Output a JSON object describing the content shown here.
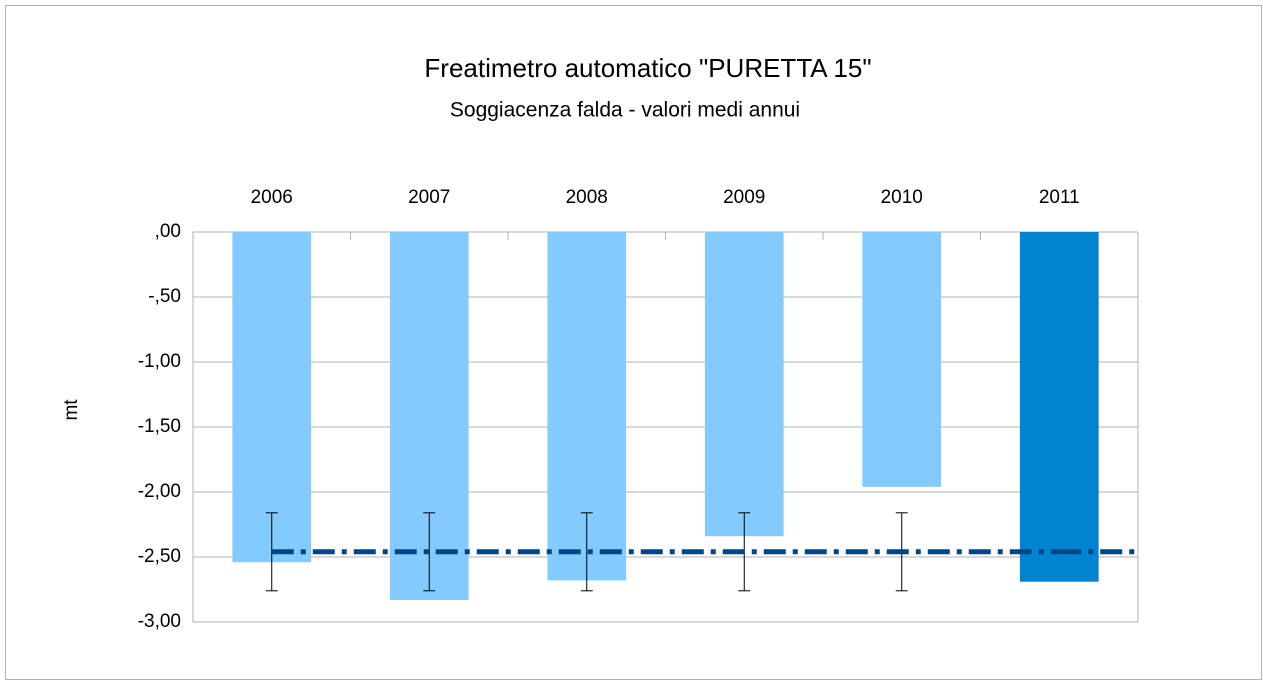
{
  "chart_data": {
    "type": "bar",
    "title": "Freatimetro automatico \"PURETTA 15\"",
    "subtitle": "Soggiacenza falda - valori medi annui",
    "y_label": "mt",
    "categories": [
      "2006",
      "2007",
      "2008",
      "2009",
      "2010",
      "2011"
    ],
    "values": [
      -2.54,
      -2.83,
      -2.68,
      -2.34,
      -1.96,
      -2.69
    ],
    "colors": [
      "#83caff",
      "#83caff",
      "#83caff",
      "#83caff",
      "#83caff",
      "#0084d1"
    ],
    "line_values": [
      -2.46,
      -2.46,
      -2.46,
      -2.46,
      -2.46,
      -2.46
    ],
    "line_errors": [
      0.3,
      0.3,
      0.3,
      0.3,
      0.3,
      null
    ],
    "line_color": "#004586",
    "ylim": [
      -3,
      0
    ],
    "yticks": [
      {
        "value": 0,
        "label": ",00"
      },
      {
        "value": -0.5,
        "label": "-,50"
      },
      {
        "value": -1,
        "label": "-1,00"
      },
      {
        "value": -1.5,
        "label": "-1,50"
      },
      {
        "value": -2,
        "label": "-2,00"
      },
      {
        "value": -2.5,
        "label": "-2,50"
      },
      {
        "value": -3,
        "label": "-3,00"
      }
    ],
    "grid": true
  }
}
